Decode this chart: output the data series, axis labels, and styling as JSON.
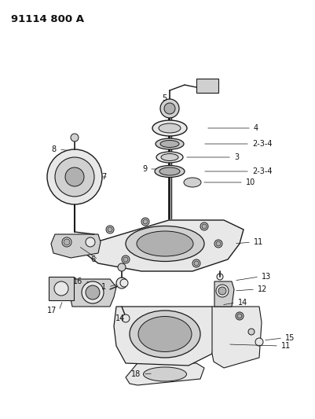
{
  "title": "91114 800 A",
  "bg_color": "#ffffff",
  "fig_width": 4.01,
  "fig_height": 5.33,
  "dpi": 100,
  "lc": "#1a1a1a",
  "tc": "#111111",
  "fc_light": "#e8e8e8",
  "fc_mid": "#d0d0d0",
  "fc_dark": "#b0b0b0",
  "lw_main": 0.8,
  "label_fs": 7.0
}
